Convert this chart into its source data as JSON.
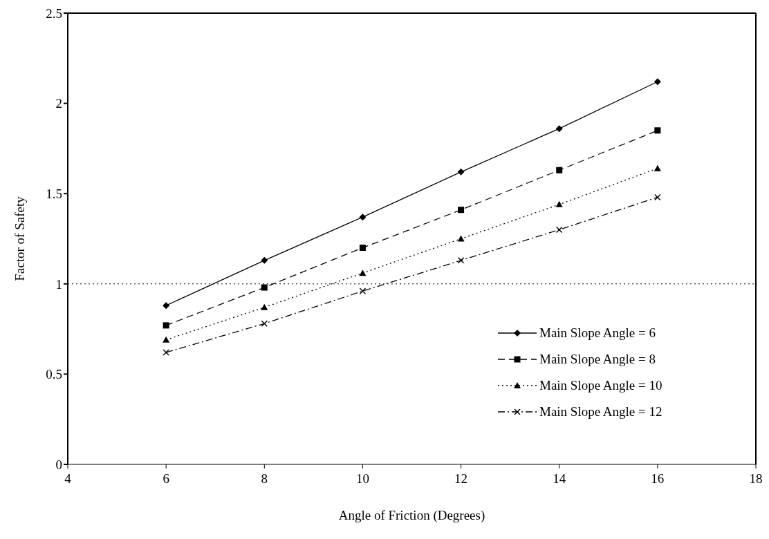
{
  "chart_data": {
    "type": "line",
    "xlabel": "Angle of Friction (Degrees)",
    "ylabel": "Factor of Safety",
    "x": [
      6,
      8,
      10,
      12,
      14,
      16
    ],
    "series": [
      {
        "name": "Main Slope Angle = 6",
        "color": "#000000",
        "marker": "diamond",
        "line_style": "solid",
        "values": [
          0.88,
          1.13,
          1.37,
          1.62,
          1.86,
          2.12
        ]
      },
      {
        "name": "Main Slope Angle = 8",
        "color": "#000000",
        "marker": "square",
        "line_style": "dashed",
        "values": [
          0.77,
          0.98,
          1.2,
          1.41,
          1.63,
          1.85
        ]
      },
      {
        "name": "Main Slope Angle = 10",
        "color": "#000000",
        "marker": "triangle",
        "line_style": "dotted",
        "values": [
          0.69,
          0.87,
          1.06,
          1.25,
          1.44,
          1.64
        ]
      },
      {
        "name": "Main Slope Angle = 12",
        "color": "#000000",
        "marker": "cross",
        "line_style": "dashdot",
        "values": [
          0.62,
          0.78,
          0.96,
          1.13,
          1.3,
          1.48
        ]
      }
    ],
    "xlim": [
      4,
      18
    ],
    "xticks": [
      4,
      6,
      8,
      10,
      12,
      14,
      16,
      18
    ],
    "ylim": [
      0,
      2.5
    ],
    "yticks": [
      0,
      0.5,
      1,
      1.5,
      2,
      2.5
    ],
    "ref_lines": [
      {
        "axis": "y",
        "value": 1,
        "label": null,
        "line_style": "dotted",
        "color": "#000000"
      }
    ],
    "legend": "bottom right"
  }
}
